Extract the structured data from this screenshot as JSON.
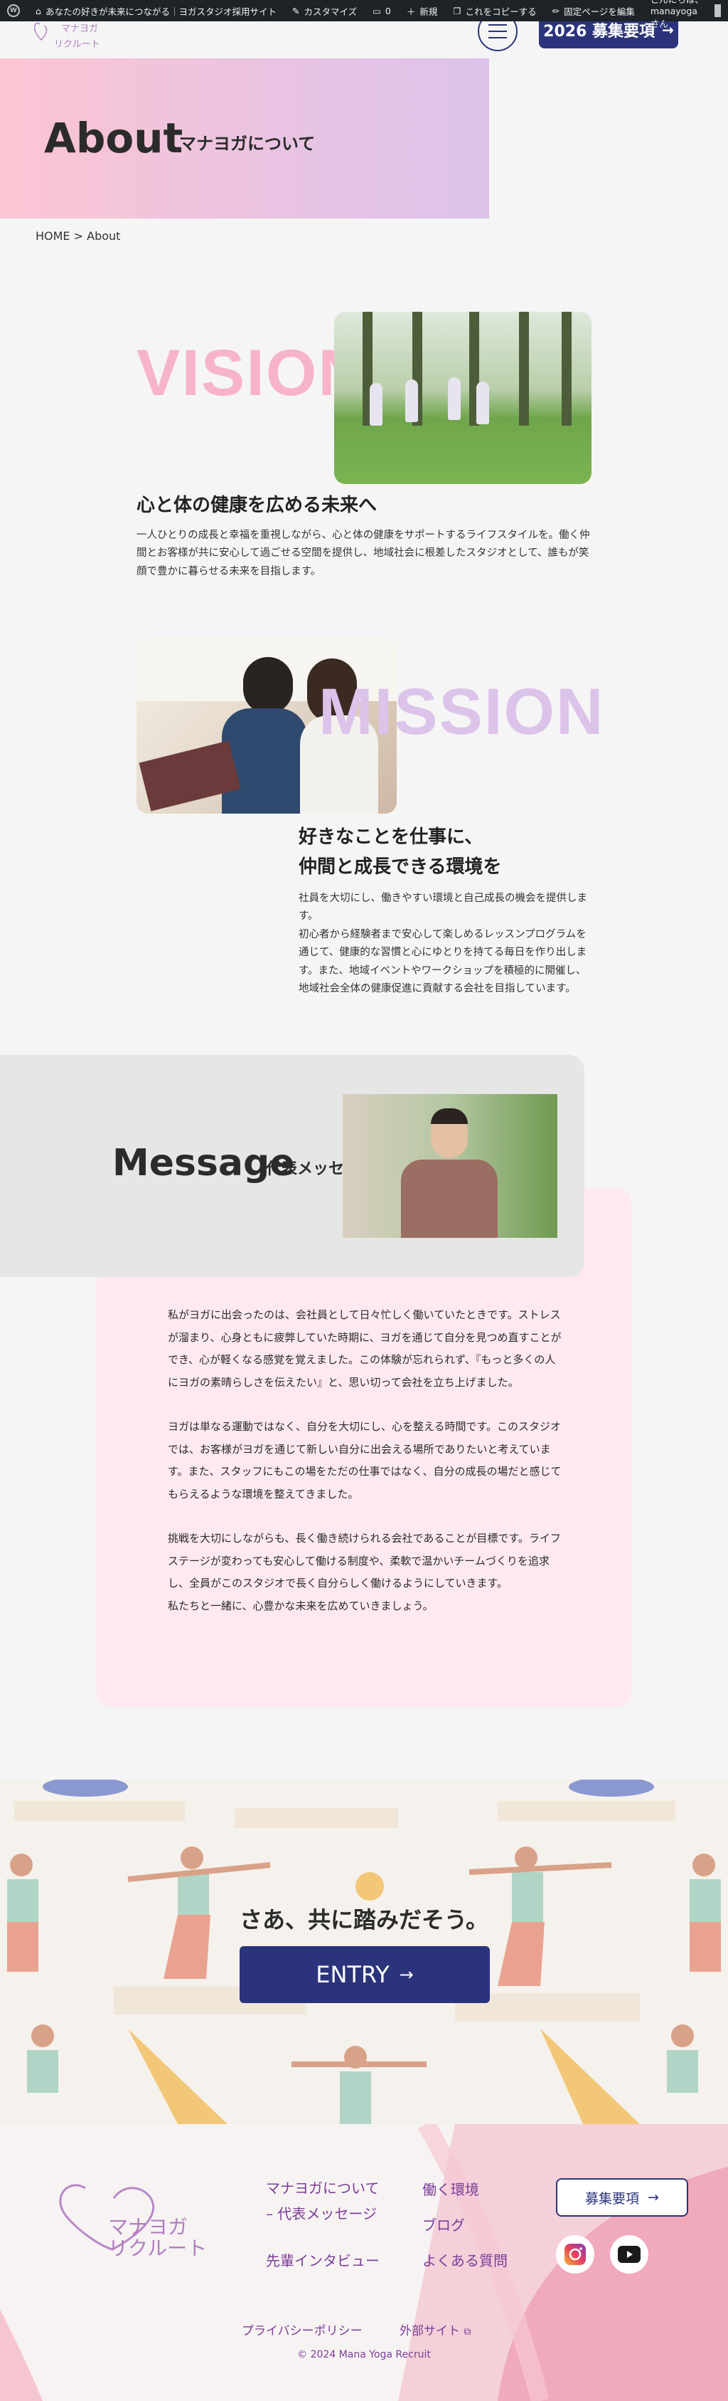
{
  "adminbar": {
    "site_name": "あなたの好きが未来につながる｜ヨガスタジオ採用サイト",
    "customize": "カスタマイズ",
    "comments": "0",
    "new": "新規",
    "copy": "これをコピーする",
    "edit": "固定ページを編集",
    "howdy": "こんにちは、manayoga さん"
  },
  "header": {
    "logo_top": "マナヨガ",
    "logo_bottom": "リクルート",
    "recruit_label": "2026 募集要項",
    "arrow": "→"
  },
  "hero": {
    "title": "About",
    "subtitle": "マナヨガについて"
  },
  "breadcrumb": {
    "home": "HOME",
    "sep": " > ",
    "current": "About"
  },
  "vision": {
    "word": "VISION",
    "heading": "心と体の健康を広める未来へ",
    "body": "一人ひとりの成長と幸福を重視しながら、心と体の健康をサポートするライフスタイルを。働く仲間とお客様が共に安心して過ごせる空間を提供し、地域社会に根差したスタジオとして、誰もが笑顔で豊かに暮らせる未来を目指します。"
  },
  "mission": {
    "word": "MISSION",
    "heading_line1": "好きなことを仕事に、",
    "heading_line2": "仲間と成長できる環境を",
    "body_p1": "社員を大切にし、働きやすい環境と自己成長の機会を提供します。",
    "body_p2": "初心者から経験者まで安心して楽しめるレッスンプログラムを通じて、健康的な習慣と心にゆとりを持てる毎日を作り出します。また、地域イベントやワークショップを積極的に開催し、地域社会全体の健康促進に貢献する会社を目指しています。"
  },
  "message": {
    "title": "Message",
    "subtitle": "代表メッセージ",
    "p1": "私がヨガに出会ったのは、会社員として日々忙しく働いていたときです。ストレスが溜まり、心身ともに疲弊していた時期に、ヨガを通じて自分を見つめ直すことができ、心が軽くなる感覚を覚えました。この体験が忘れられず、『もっと多くの人にヨガの素晴らしさを伝えたい』と、思い切って会社を立ち上げました。",
    "p2": "ヨガは単なる運動ではなく、自分を大切にし、心を整える時間です。このスタジオでは、お客様がヨガを通じて新しい自分に出会える場所でありたいと考えています。また、スタッフにもこの場をただの仕事ではなく、自分の成長の場だと感じてもらえるような環境を整えてきました。",
    "p3": "挑戦を大切にしながらも、長く働き続けられる会社であることが目標です。ライフステージが変わっても安心して働ける制度や、柔軟で温かいチームづくりを追求し、全員がこのスタジオで長く自分らしく働けるようにしていきます。",
    "p4": "私たちと一緒に、心豊かな未来を広めていきましょう。"
  },
  "entry": {
    "title": "さあ、共に踏みだそう。",
    "button": "ENTRY",
    "arrow": "→"
  },
  "footer": {
    "logo_top": "マナヨガ",
    "logo_bottom": "リクルート",
    "link_about": "マナヨガについて",
    "link_message": "– 代表メッセージ",
    "link_interview": "先輩インタビュー",
    "link_environment": "働く環境",
    "link_blog": "ブログ",
    "link_faq": "よくある質問",
    "recruit_button": "募集要項",
    "arrow": "→",
    "privacy": "プライバシーポリシー",
    "external": "外部サイト",
    "copyright": "© 2024 Mana Yoga Recruit"
  },
  "colors": {
    "navy": "#2b347a",
    "pink": "#f7b4c8",
    "lavender": "#dcc3ea",
    "purple_link": "#7b3d97"
  }
}
